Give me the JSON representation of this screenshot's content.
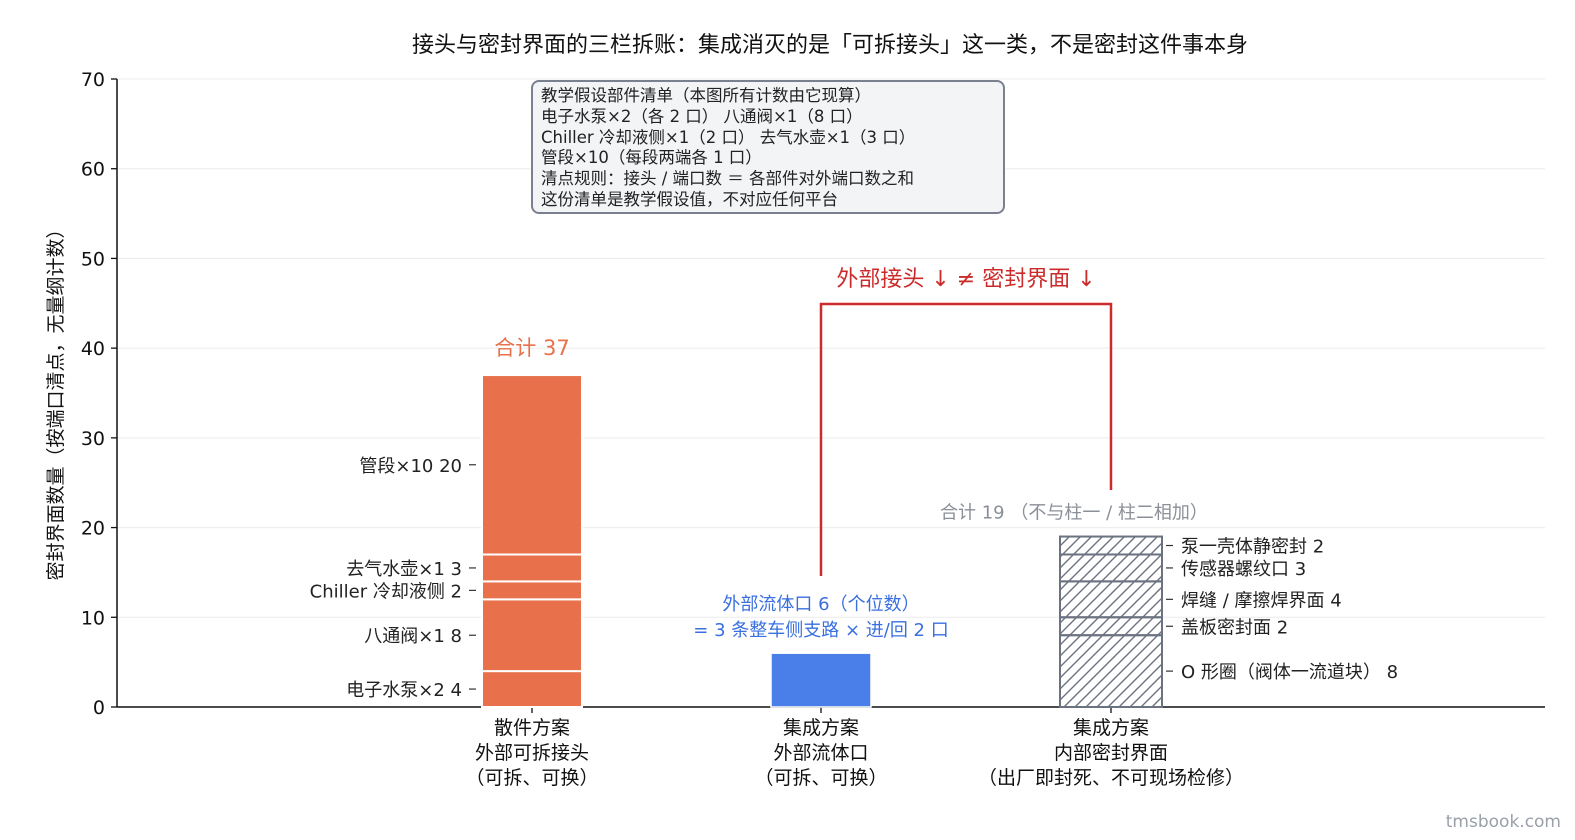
{
  "chart_data": {
    "type": "bar",
    "title": "接头与密封界面的三栏拆账：集成消灭的是「可拆接头」这一类，不是密封这件事本身",
    "ylabel": "密封界面数量（按端口清点，无量纲计数）",
    "ylim": [
      0,
      70
    ],
    "yticks": [
      0,
      10,
      20,
      30,
      40,
      50,
      60,
      70
    ],
    "grid": true,
    "categories": [
      {
        "line1": "散件方案",
        "line2": "外部可拆接头",
        "line3": "（可拆、可换）"
      },
      {
        "line1": "集成方案",
        "line2": "外部流体口",
        "line3": "（可拆、可换）"
      },
      {
        "line1": "集成方案",
        "line2": "内部密封界面",
        "line3": "（出厂即封死、不可现场检修）"
      }
    ],
    "bar1": {
      "color": "#e8704a",
      "total_label": "合计 37",
      "segments": [
        {
          "label": "电子水泵×2",
          "value": 4
        },
        {
          "label": "八通阀×1",
          "value": 8
        },
        {
          "label": "Chiller 冷却液侧",
          "value": 2
        },
        {
          "label": "去气水壶×1",
          "value": 3
        },
        {
          "label": "管段×10",
          "value": 20
        }
      ]
    },
    "bar2": {
      "color": "#4a7ee8",
      "value": 6,
      "label_line1": "外部流体口   6（个位数）",
      "label_line2": "= 3 条整车侧支路 × 进/回 2 口"
    },
    "bar3": {
      "edge_color": "#6b7280",
      "hatch": true,
      "total_label": "合计 19    （不与柱一 / 柱二相加）",
      "segments": [
        {
          "label": "O 形圈（阀体一流道块）",
          "value": 8
        },
        {
          "label": "盖板密封面",
          "value": 2
        },
        {
          "label": "焊缝 / 摩擦焊界面",
          "value": 4
        },
        {
          "label": "传感器螺纹口",
          "value": 3
        },
        {
          "label": "泵一壳体静密封",
          "value": 2
        }
      ]
    },
    "annotation": {
      "text": "外部接头 ↓   ≠   密封界面 ↓",
      "color": "#cc2b2b"
    },
    "infobox": {
      "lines": [
        "教学假设部件清单（本图所有计数由它现算）",
        "电子水泵×2（各 2 口）    八通阀×1（8 口）",
        "Chiller 冷却液侧×1（2 口）    去气水壶×1（3 口）",
        "管段×10（每段两端各 1 口）",
        "清点规则：接头 / 端口数 ＝ 各部件对外端口数之和",
        "这份清单是教学假设值，不对应任何平台"
      ]
    }
  },
  "watermark": "tmsbook.com"
}
